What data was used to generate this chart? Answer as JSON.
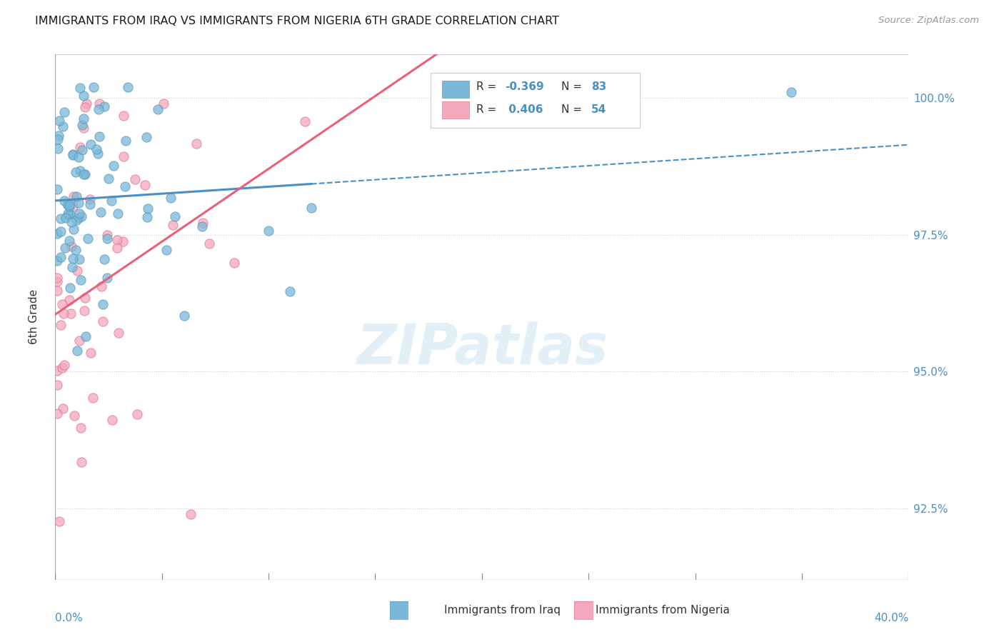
{
  "title": "IMMIGRANTS FROM IRAQ VS IMMIGRANTS FROM NIGERIA 6TH GRADE CORRELATION CHART",
  "source": "Source: ZipAtlas.com",
  "ylabel": "6th Grade",
  "yaxis_labels": [
    "100.0%",
    "97.5%",
    "95.0%",
    "92.5%"
  ],
  "yaxis_values": [
    1.0,
    0.975,
    0.95,
    0.925
  ],
  "xmin": 0.0,
  "xmax": 0.4,
  "ymin": 0.912,
  "ymax": 1.008,
  "iraq_R": -0.369,
  "iraq_N": 83,
  "nigeria_R": 0.406,
  "nigeria_N": 54,
  "iraq_color": "#7ab8d9",
  "nigeria_color": "#f4a8bc",
  "iraq_edge_color": "#5a9dc0",
  "nigeria_edge_color": "#e87898",
  "iraq_line_color": "#4a90c4",
  "nigeria_line_color": "#e8607a",
  "background_color": "white",
  "watermark": "ZIPatlas",
  "grid_color": "#cccccc",
  "legend_R_iraq": "R = -0.369",
  "legend_N_iraq": "N = 83",
  "legend_R_nigeria": "R =  0.406",
  "legend_N_nigeria": "N = 54",
  "num_value_color": "#4a90c4"
}
